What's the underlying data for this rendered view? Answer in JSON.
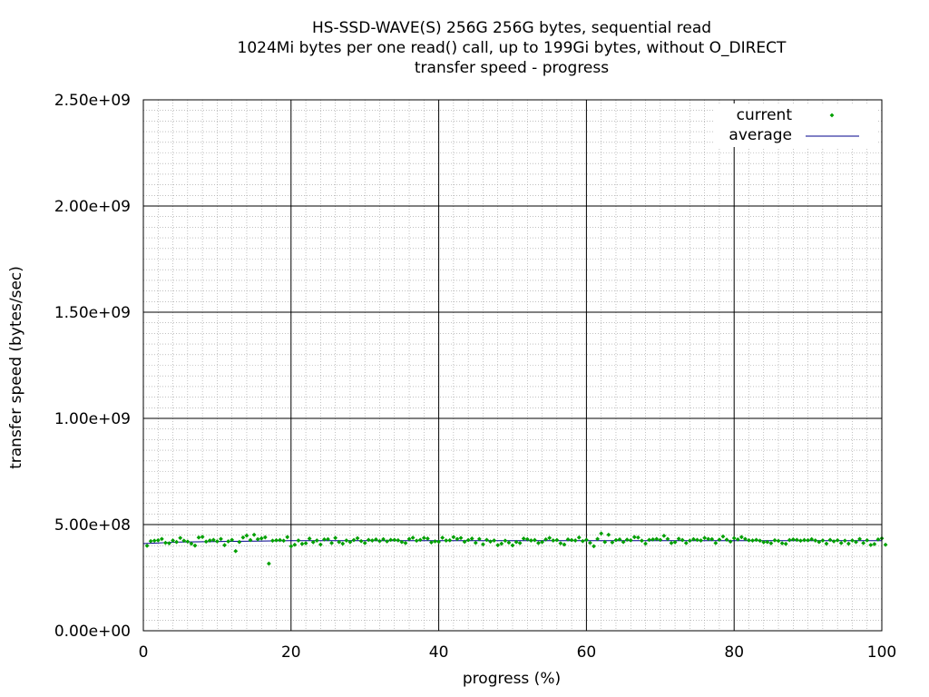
{
  "chart_data": {
    "type": "scatter",
    "title": "HS-SSD-WAVE(S) 256G 256G bytes, sequential read",
    "subtitle": "1024Mi bytes per one read() call, up to 199Gi bytes, without O_DIRECT",
    "subtitle2": "transfer speed - progress",
    "xlabel": "progress (%)",
    "ylabel": "transfer speed (bytes/sec)",
    "xlim": [
      0,
      100
    ],
    "ylim": [
      0,
      2500000000
    ],
    "x_ticks": [
      0,
      20,
      40,
      60,
      80,
      100
    ],
    "x_tick_labels": [
      "0",
      "20",
      "40",
      "60",
      "80",
      "100"
    ],
    "y_ticks": [
      0,
      500000000,
      1000000000,
      1500000000,
      2000000000,
      2500000000
    ],
    "y_tick_labels": [
      "0.00e+00",
      "5.00e+08",
      "1.00e+09",
      "1.50e+09",
      "2.00e+09",
      "2.50e+09"
    ],
    "grid": true,
    "legend_position": "top-right",
    "legend": [
      {
        "label": "current",
        "marker": "point",
        "color": "#00a000"
      },
      {
        "label": "average",
        "marker": "line",
        "color": "#00008b"
      }
    ],
    "series": [
      {
        "name": "current",
        "style": "points",
        "color": "#00a000",
        "x_start": 0.5,
        "x_step": 0.5,
        "values": [
          400000000,
          422000000,
          424000000,
          426000000,
          432000000,
          414000000,
          412000000,
          425000000,
          418000000,
          437000000,
          424000000,
          420000000,
          410000000,
          401000000,
          439000000,
          442000000,
          420000000,
          425000000,
          428000000,
          421000000,
          432000000,
          403000000,
          421000000,
          428000000,
          375000000,
          418000000,
          439000000,
          448000000,
          427000000,
          452000000,
          431000000,
          435000000,
          440000000,
          316000000,
          424000000,
          426000000,
          427000000,
          424000000,
          441000000,
          398000000,
          405000000,
          425000000,
          409000000,
          412000000,
          434000000,
          417000000,
          425000000,
          406000000,
          430000000,
          431000000,
          413000000,
          437000000,
          418000000,
          410000000,
          425000000,
          418000000,
          427000000,
          436000000,
          422000000,
          413000000,
          428000000,
          425000000,
          430000000,
          422000000,
          431000000,
          421000000,
          428000000,
          428000000,
          426000000,
          418000000,
          413000000,
          432000000,
          438000000,
          424000000,
          428000000,
          437000000,
          434000000,
          416000000,
          421000000,
          419000000,
          438000000,
          425000000,
          426000000,
          441000000,
          432000000,
          437000000,
          419000000,
          427000000,
          434000000,
          414000000,
          432000000,
          407000000,
          428000000,
          420000000,
          425000000,
          403000000,
          410000000,
          424000000,
          415000000,
          402000000,
          418000000,
          413000000,
          434000000,
          431000000,
          425000000,
          427000000,
          413000000,
          418000000,
          430000000,
          437000000,
          425000000,
          427000000,
          412000000,
          406000000,
          430000000,
          427000000,
          425000000,
          439000000,
          422000000,
          428000000,
          414000000,
          398000000,
          432000000,
          458000000,
          418000000,
          452000000,
          416000000,
          427000000,
          430000000,
          418000000,
          429000000,
          426000000,
          441000000,
          439000000,
          424000000,
          410000000,
          428000000,
          430000000,
          432000000,
          428000000,
          447000000,
          432000000,
          413000000,
          417000000,
          433000000,
          427000000,
          413000000,
          424000000,
          431000000,
          428000000,
          425000000,
          437000000,
          432000000,
          431000000,
          413000000,
          429000000,
          444000000,
          429000000,
          420000000,
          436000000,
          430000000,
          441000000,
          432000000,
          426000000,
          425000000,
          428000000,
          424000000,
          417000000,
          418000000,
          412000000,
          426000000,
          423000000,
          412000000,
          409000000,
          427000000,
          430000000,
          428000000,
          424000000,
          427000000,
          426000000,
          431000000,
          425000000,
          418000000,
          425000000,
          410000000,
          428000000,
          421000000,
          426000000,
          413000000,
          424000000,
          410000000,
          425000000,
          418000000,
          432000000,
          413000000,
          426000000,
          404000000,
          408000000,
          430000000,
          435000000,
          405000000
        ]
      },
      {
        "name": "average",
        "style": "line",
        "color": "#00008b",
        "x": [
          0,
          5,
          15,
          20,
          100
        ],
        "values": [
          410000000,
          418000000,
          422000000,
          424000000,
          424000000
        ]
      }
    ]
  }
}
